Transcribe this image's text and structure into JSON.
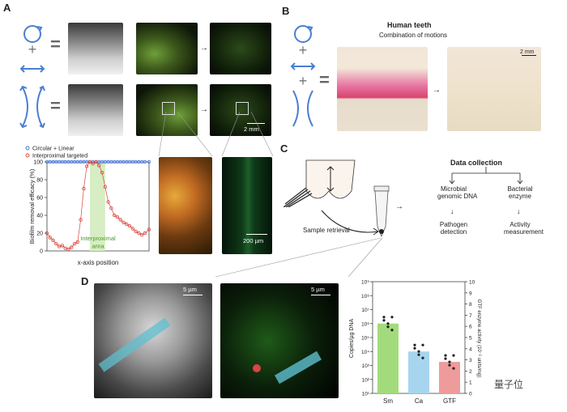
{
  "panels": {
    "a": "A",
    "b": "B",
    "c": "C",
    "d": "D"
  },
  "panel_a": {
    "scale_bar": "2 mm",
    "zoom_scale_bar": "200 µm",
    "area_label_line1": "Interproximal",
    "area_label_line2": "area"
  },
  "panel_b": {
    "title": "Human teeth",
    "subtitle": "Combination of motions",
    "scale_bar": "2 mm"
  },
  "panel_c": {
    "data_collection": "Data collection",
    "microbial_line1": "Microbial",
    "microbial_line2": "genomic DNA",
    "bacterial_line1": "Bacterial",
    "bacterial_line2": "enzyme",
    "pathogen_line1": "Pathogen",
    "pathogen_line2": "detection",
    "activity_line1": "Activity",
    "activity_line2": "measurement",
    "sample_retrieval": "Sample retrieval"
  },
  "panel_d": {
    "scale_bar_1": "5 µm",
    "scale_bar_2": "5 µm"
  },
  "watermark": "量子位",
  "chart_data": [
    {
      "type": "scatter",
      "title": "",
      "xlabel": "x-axis position",
      "ylabel": "Biofilm removal efficacy (%)",
      "ylim": [
        0,
        100
      ],
      "yticks": [
        0,
        20,
        40,
        60,
        80,
        100
      ],
      "legend_placement": "top-left",
      "shaded_region_label": "Interproximal area",
      "series": [
        {
          "name": "Circular + Linear",
          "color": "#3b6fd8",
          "x": [
            0,
            3,
            6,
            9,
            12,
            15,
            18,
            21,
            24,
            27,
            30,
            33,
            36,
            39,
            42,
            45,
            48,
            51,
            54,
            57,
            60,
            63,
            66,
            69,
            72,
            75,
            78,
            81,
            84,
            87,
            90,
            93,
            96,
            100
          ],
          "y": [
            100,
            100,
            100,
            100,
            100,
            100,
            100,
            100,
            100,
            100,
            100,
            100,
            100,
            100,
            100,
            100,
            100,
            100,
            100,
            100,
            100,
            100,
            100,
            100,
            100,
            100,
            100,
            100,
            100,
            100,
            100,
            100,
            100,
            100
          ]
        },
        {
          "name": "Interproximal targeted",
          "color": "#d9443a",
          "x": [
            0,
            3,
            6,
            9,
            12,
            15,
            18,
            21,
            24,
            27,
            30,
            33,
            36,
            39,
            42,
            45,
            48,
            51,
            54,
            57,
            60,
            63,
            66,
            69,
            72,
            75,
            78,
            81,
            84,
            87,
            90,
            93,
            96,
            100
          ],
          "y": [
            20,
            15,
            12,
            8,
            5,
            6,
            3,
            2,
            4,
            8,
            10,
            35,
            70,
            95,
            100,
            98,
            100,
            96,
            88,
            72,
            55,
            48,
            40,
            38,
            35,
            32,
            30,
            28,
            25,
            22,
            20,
            18,
            20,
            24
          ]
        }
      ]
    },
    {
      "type": "bar",
      "title": "",
      "xlabel": "",
      "ylabel": "Copies/µg DNA",
      "y2label": "GTF enzyme activity (10⁻² units/mg)",
      "y_scale": "log",
      "ylim": [
        10,
        1000000000
      ],
      "y_ticklabels": [
        "10⁹",
        "10⁸",
        "10⁷",
        "10⁶",
        "10⁵",
        "10⁴",
        "10³",
        "10²",
        "10¹"
      ],
      "y2lim": [
        0,
        10
      ],
      "y2_ticklabels": [
        "10",
        "9",
        "8",
        "7",
        "6",
        "5",
        "4",
        "3",
        "2",
        "1",
        "0"
      ],
      "categories": [
        "Sm",
        "Ca",
        "GTF"
      ],
      "values": [
        1000000,
        10000,
        1800
      ],
      "colors": [
        "#a3db7c",
        "#a7d5ef",
        "#ee9b9b"
      ]
    }
  ]
}
